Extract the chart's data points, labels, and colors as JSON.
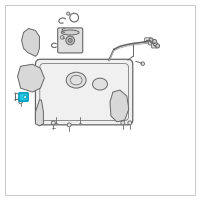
{
  "bg_color": "#ffffff",
  "border_color": "#c8c8c8",
  "highlight_color": "#1ec8e0",
  "line_color": "#888888",
  "dark_line": "#666666",
  "part_fill": "#e0e0e0",
  "fig_width": 2.0,
  "fig_height": 2.0,
  "dpi": 100
}
